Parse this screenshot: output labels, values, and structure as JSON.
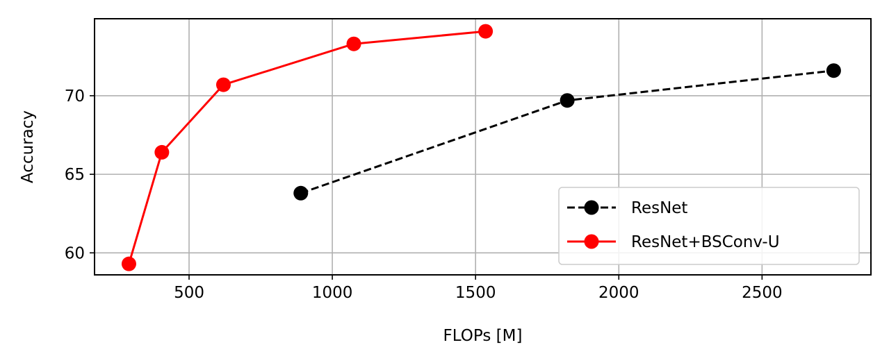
{
  "chart_data": {
    "type": "line",
    "title": "",
    "xlabel": "FLOPs [M]",
    "ylabel": "Accuracy",
    "xlim": [
      170,
      2880
    ],
    "ylim": [
      58.6,
      74.9
    ],
    "xticks": [
      500,
      1000,
      1500,
      2000,
      2500
    ],
    "yticks": [
      60,
      65,
      70
    ],
    "grid": true,
    "legend_position": "lower-right",
    "series": [
      {
        "name": "ResNet",
        "color": "#000000",
        "line_style": "dashed",
        "marker": "circle",
        "x": [
          890,
          1820,
          2750
        ],
        "y": [
          63.8,
          69.7,
          71.6
        ]
      },
      {
        "name": "ResNet+BSConv-U",
        "color": "#ff0000",
        "line_style": "solid",
        "marker": "circle",
        "x": [
          290,
          405,
          620,
          1075,
          1535
        ],
        "y": [
          59.3,
          66.4,
          70.7,
          73.3,
          74.1
        ]
      }
    ]
  }
}
